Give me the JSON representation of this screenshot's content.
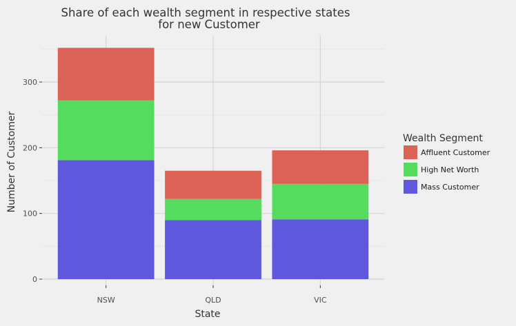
{
  "chart_data": {
    "type": "bar",
    "stacked": true,
    "title_lines": [
      "Share of each wealth segment in respective states",
      "for new Customer"
    ],
    "xlabel": "State",
    "ylabel": "Number of Customer",
    "categories": [
      "NSW",
      "QLD",
      "VIC"
    ],
    "ylim": [
      0,
      370
    ],
    "yticks": [
      0,
      100,
      200,
      300
    ],
    "grid": true,
    "legend_title": "Wealth Segment",
    "legend_position": "right",
    "series": [
      {
        "name": "Mass Customer",
        "values": [
          181,
          90,
          91
        ],
        "color": "#5f57dc"
      },
      {
        "name": "High Net Worth",
        "values": [
          91,
          32,
          54
        ],
        "color": "#55dc5e"
      },
      {
        "name": "Affluent Customer",
        "values": [
          80,
          43,
          51
        ],
        "color": "#dc6157"
      }
    ]
  }
}
